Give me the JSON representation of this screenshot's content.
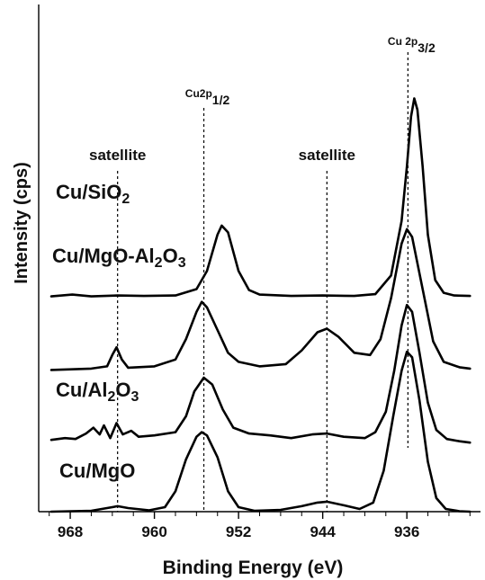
{
  "chart_data": {
    "type": "line",
    "title": "",
    "xlabel": "Binding Energy (eV)",
    "ylabel": "Intensity (cps)",
    "xlim": [
      971,
      929
    ],
    "x_reversed": true,
    "x_ticks": [
      968,
      960,
      952,
      944,
      936
    ],
    "y_ticks": [],
    "grid": false,
    "legend": "none",
    "line_color": "#000000",
    "reference_lines": [
      {
        "label": "satellite",
        "x": 963.5
      },
      {
        "label_base": "Cu2p",
        "label_sub": "1/2",
        "x": 955.3
      },
      {
        "label": "satellite",
        "x": 943.6
      },
      {
        "label_base": "Cu 2p",
        "label_sub": "3/2",
        "x": 935.9
      }
    ],
    "series": [
      {
        "name": "Cu/SiO2",
        "label_base": "Cu/SiO",
        "label_sub": "2",
        "label_tail": "",
        "baseline": 4.72,
        "points": [
          [
            969.8,
            4.74
          ],
          [
            967.8,
            4.78
          ],
          [
            966.0,
            4.74
          ],
          [
            963.5,
            4.76
          ],
          [
            961.0,
            4.75
          ],
          [
            958.0,
            4.76
          ],
          [
            956.0,
            4.9
          ],
          [
            955.0,
            5.3
          ],
          [
            954.0,
            6.1
          ],
          [
            953.6,
            6.3
          ],
          [
            953.0,
            6.15
          ],
          [
            952.0,
            5.3
          ],
          [
            951.0,
            4.88
          ],
          [
            950.0,
            4.78
          ],
          [
            947.0,
            4.75
          ],
          [
            944.0,
            4.76
          ],
          [
            941.0,
            4.75
          ],
          [
            939.0,
            4.79
          ],
          [
            937.5,
            5.2
          ],
          [
            936.5,
            6.4
          ],
          [
            936.0,
            7.6
          ],
          [
            935.6,
            8.7
          ],
          [
            935.3,
            9.1
          ],
          [
            935.0,
            8.85
          ],
          [
            934.5,
            7.6
          ],
          [
            934.0,
            6.1
          ],
          [
            933.3,
            5.1
          ],
          [
            932.5,
            4.82
          ],
          [
            931.5,
            4.76
          ],
          [
            930.0,
            4.75
          ]
        ]
      },
      {
        "name": "Cu/MgO-Al2O3",
        "label_base": "Cu/MgO-Al",
        "label_sub": "2",
        "label_tail": "O",
        "label_sub2": "3",
        "baseline": 3.12,
        "points": [
          [
            969.8,
            3.12
          ],
          [
            966.0,
            3.15
          ],
          [
            964.5,
            3.2
          ],
          [
            964.0,
            3.45
          ],
          [
            963.6,
            3.62
          ],
          [
            963.1,
            3.35
          ],
          [
            962.5,
            3.17
          ],
          [
            960.0,
            3.2
          ],
          [
            958.0,
            3.35
          ],
          [
            957.0,
            3.8
          ],
          [
            956.0,
            4.4
          ],
          [
            955.5,
            4.62
          ],
          [
            955.0,
            4.5
          ],
          [
            954.0,
            4.0
          ],
          [
            953.0,
            3.5
          ],
          [
            952.0,
            3.3
          ],
          [
            950.0,
            3.2
          ],
          [
            947.5,
            3.25
          ],
          [
            946.0,
            3.55
          ],
          [
            944.5,
            3.95
          ],
          [
            943.6,
            4.03
          ],
          [
            942.5,
            3.85
          ],
          [
            941.0,
            3.5
          ],
          [
            939.5,
            3.45
          ],
          [
            938.5,
            3.8
          ],
          [
            937.5,
            4.7
          ],
          [
            936.5,
            5.9
          ],
          [
            936.0,
            6.22
          ],
          [
            935.5,
            6.05
          ],
          [
            934.5,
            4.9
          ],
          [
            933.5,
            3.75
          ],
          [
            932.5,
            3.3
          ],
          [
            931.0,
            3.18
          ],
          [
            930.0,
            3.15
          ]
        ]
      },
      {
        "name": "Cu/Al2O3",
        "label_base": "Cu/Al",
        "label_sub": "2",
        "label_tail": "O",
        "label_sub2": "3",
        "baseline": 1.52,
        "points": [
          [
            969.8,
            1.58
          ],
          [
            968.5,
            1.62
          ],
          [
            967.5,
            1.6
          ],
          [
            966.5,
            1.72
          ],
          [
            965.8,
            1.85
          ],
          [
            965.2,
            1.7
          ],
          [
            964.8,
            1.9
          ],
          [
            964.2,
            1.62
          ],
          [
            963.6,
            1.95
          ],
          [
            963.0,
            1.7
          ],
          [
            962.2,
            1.78
          ],
          [
            961.5,
            1.65
          ],
          [
            960.0,
            1.68
          ],
          [
            958.0,
            1.75
          ],
          [
            957.0,
            2.1
          ],
          [
            956.2,
            2.65
          ],
          [
            955.3,
            2.95
          ],
          [
            954.5,
            2.8
          ],
          [
            953.5,
            2.25
          ],
          [
            952.5,
            1.85
          ],
          [
            951.0,
            1.72
          ],
          [
            949.0,
            1.68
          ],
          [
            947.0,
            1.62
          ],
          [
            945.0,
            1.7
          ],
          [
            943.6,
            1.72
          ],
          [
            942.0,
            1.65
          ],
          [
            940.0,
            1.62
          ],
          [
            939.0,
            1.75
          ],
          [
            938.0,
            2.2
          ],
          [
            937.2,
            3.1
          ],
          [
            936.5,
            4.1
          ],
          [
            936.0,
            4.55
          ],
          [
            935.5,
            4.4
          ],
          [
            934.8,
            3.5
          ],
          [
            934.0,
            2.4
          ],
          [
            933.2,
            1.8
          ],
          [
            932.2,
            1.6
          ],
          [
            931.0,
            1.55
          ],
          [
            930.0,
            1.52
          ]
        ]
      },
      {
        "name": "Cu/MgO",
        "label_base": "Cu/MgO",
        "label_sub": "",
        "label_tail": "",
        "baseline": 0.0,
        "points": [
          [
            969.8,
            0.0
          ],
          [
            966.0,
            0.02
          ],
          [
            964.5,
            0.08
          ],
          [
            963.5,
            0.12
          ],
          [
            962.5,
            0.08
          ],
          [
            960.5,
            0.03
          ],
          [
            959.0,
            0.1
          ],
          [
            958.0,
            0.45
          ],
          [
            957.0,
            1.15
          ],
          [
            956.0,
            1.65
          ],
          [
            955.5,
            1.75
          ],
          [
            955.0,
            1.68
          ],
          [
            954.0,
            1.2
          ],
          [
            953.0,
            0.45
          ],
          [
            952.0,
            0.1
          ],
          [
            950.5,
            0.02
          ],
          [
            948.0,
            0.04
          ],
          [
            946.0,
            0.12
          ],
          [
            944.5,
            0.2
          ],
          [
            943.6,
            0.22
          ],
          [
            942.0,
            0.14
          ],
          [
            940.5,
            0.06
          ],
          [
            939.2,
            0.2
          ],
          [
            938.2,
            0.9
          ],
          [
            937.3,
            2.1
          ],
          [
            936.5,
            3.1
          ],
          [
            936.0,
            3.52
          ],
          [
            935.5,
            3.4
          ],
          [
            934.8,
            2.45
          ],
          [
            934.0,
            1.1
          ],
          [
            933.2,
            0.3
          ],
          [
            932.3,
            0.06
          ],
          [
            931.0,
            0.01
          ],
          [
            930.0,
            0.0
          ]
        ]
      }
    ]
  }
}
